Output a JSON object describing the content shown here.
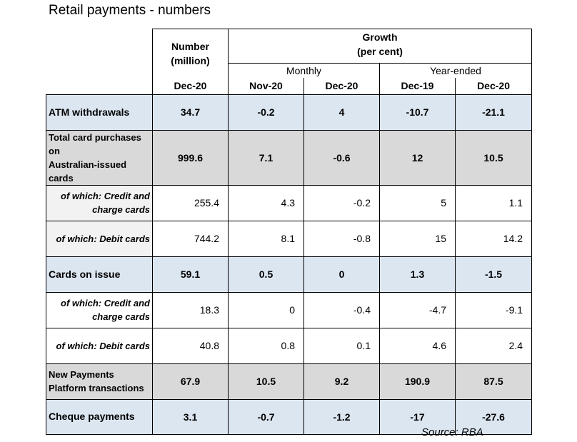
{
  "title": "Retail payments - numbers",
  "source": "Source: RBA",
  "table": {
    "header": {
      "number_line1": "Number",
      "number_line2": "(million)",
      "growth_line1": "Growth",
      "growth_line2": "(per cent)",
      "monthly": "Monthly",
      "year_ended": "Year-ended",
      "col_dates": [
        "Dec-20",
        "Nov-20",
        "Dec-20",
        "Dec-19",
        "Dec-20"
      ]
    },
    "rows": [
      {
        "label": "ATM withdrawals",
        "values": [
          "34.7",
          "-0.2",
          "4",
          "-10.7",
          "-21.1"
        ]
      },
      {
        "label_line1": "Total card purchases on",
        "label_line2": "Australian-issued cards",
        "values": [
          "999.6",
          "7.1",
          "-0.6",
          "12",
          "10.5"
        ]
      },
      {
        "label_line1": "of which: Credit and",
        "label_line2": "charge cards",
        "values": [
          "255.4",
          "4.3",
          "-0.2",
          "5",
          "1.1"
        ]
      },
      {
        "label": "of which: Debit cards",
        "values": [
          "744.2",
          "8.1",
          "-0.8",
          "15",
          "14.2"
        ]
      },
      {
        "label": "Cards on issue",
        "values": [
          "59.1",
          "0.5",
          "0",
          "1.3",
          "-1.5"
        ]
      },
      {
        "label_line1": "of which: Credit and",
        "label_line2": "charge cards",
        "values": [
          "18.3",
          "0",
          "-0.4",
          "-4.7",
          "-9.1"
        ]
      },
      {
        "label": "of which: Debit cards",
        "values": [
          "40.8",
          "0.8",
          "0.1",
          "4.6",
          "2.4"
        ]
      },
      {
        "label_line1": "New Payments",
        "label_line2": "Platform transactions",
        "values": [
          "67.9",
          "10.5",
          "9.2",
          "190.9",
          "87.5"
        ]
      },
      {
        "label": "Cheque payments",
        "values": [
          "3.1",
          "-0.7",
          "-1.2",
          "-17",
          "-27.6"
        ]
      }
    ]
  },
  "chart_data": {
    "type": "table",
    "title": "Retail payments - numbers",
    "columns": [
      "Number (million) Dec-20",
      "Monthly growth Nov-20",
      "Monthly growth Dec-20",
      "Year-ended growth Dec-19",
      "Year-ended growth Dec-20"
    ],
    "rows": [
      {
        "name": "ATM withdrawals",
        "values": [
          34.7,
          -0.2,
          4,
          -10.7,
          -21.1
        ]
      },
      {
        "name": "Total card purchases on Australian-issued cards",
        "values": [
          999.6,
          7.1,
          -0.6,
          12,
          10.5
        ]
      },
      {
        "name": "of which: Credit and charge cards",
        "values": [
          255.4,
          4.3,
          -0.2,
          5,
          1.1
        ]
      },
      {
        "name": "of which: Debit cards",
        "values": [
          744.2,
          8.1,
          -0.8,
          15,
          14.2
        ]
      },
      {
        "name": "Cards on issue",
        "values": [
          59.1,
          0.5,
          0,
          1.3,
          -1.5
        ]
      },
      {
        "name": "of which: Credit and charge cards",
        "values": [
          18.3,
          0,
          -0.4,
          -4.7,
          -9.1
        ]
      },
      {
        "name": "of which: Debit cards",
        "values": [
          40.8,
          0.8,
          0.1,
          4.6,
          2.4
        ]
      },
      {
        "name": "New Payments Platform transactions",
        "values": [
          67.9,
          10.5,
          9.2,
          190.9,
          87.5
        ]
      },
      {
        "name": "Cheque payments",
        "values": [
          3.1,
          -0.7,
          -1.2,
          -17,
          -27.6
        ]
      }
    ],
    "source": "Source: RBA"
  }
}
